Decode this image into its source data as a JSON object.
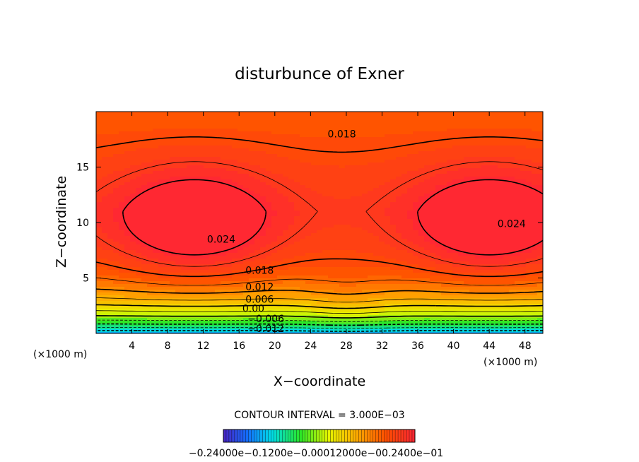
{
  "chart_data": {
    "type": "heatmap",
    "title": "disturbunce of Exner",
    "xlabel": "X−coordinate",
    "ylabel": "Z−coordinate",
    "x_unit_left": "(×1000 m)",
    "x_unit_right": "(×1000 m)",
    "xlim": [
      0,
      50
    ],
    "ylim": [
      0,
      20
    ],
    "x_ticks": [
      4,
      8,
      12,
      16,
      20,
      24,
      28,
      32,
      36,
      40,
      44,
      48
    ],
    "y_ticks": [
      5,
      10,
      15
    ],
    "contour_labels": [
      {
        "text": "0.018",
        "x": 27.5,
        "y": 18.0
      },
      {
        "text": "0.024",
        "x": 14.0,
        "y": 8.5
      },
      {
        "text": "0.024",
        "x": 46.5,
        "y": 9.9
      },
      {
        "text": "0.018",
        "x": 18.3,
        "y": 5.7
      },
      {
        "text": "0.012",
        "x": 18.3,
        "y": 4.2
      },
      {
        "text": "0.006",
        "x": 18.3,
        "y": 3.1
      },
      {
        "text": "0.00",
        "x": 17.6,
        "y": 2.25
      },
      {
        "text": "−0.006",
        "x": 19.0,
        "y": 1.35
      },
      {
        "text": "−0.012",
        "x": 19.0,
        "y": 0.45
      }
    ],
    "contour_interval_text": "CONTOUR INTERVAL = 3.000E−03",
    "colorbar": {
      "min": -0.024,
      "max": 0.024,
      "label_text": "−0.24000e−0.1200e−0.00012000e−00.2400e−01"
    }
  }
}
